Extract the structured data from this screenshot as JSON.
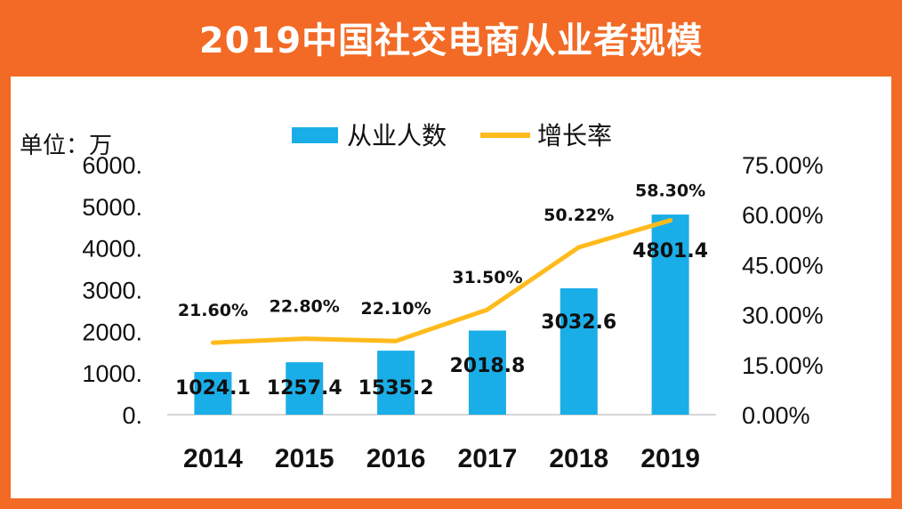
{
  "title": "2019中国社交电商从业者规模",
  "unit_label": "单位：万",
  "colors": {
    "frame": "#f26a25",
    "bar": "#1aaee8",
    "line": "#ffbb1c"
  },
  "chart_data": {
    "type": "bar",
    "categories": [
      "2014",
      "2015",
      "2016",
      "2017",
      "2018",
      "2019"
    ],
    "series": [
      {
        "name": "从业人数",
        "type": "bar",
        "axis": "left",
        "values": [
          1024.1,
          1257.4,
          1535.2,
          2018.8,
          3032.6,
          4801.4
        ],
        "labels": [
          "1024.1",
          "1257.4",
          "1535.2",
          "2018.8",
          "3032.6",
          "4801.4"
        ]
      },
      {
        "name": "增长率",
        "type": "line",
        "axis": "right",
        "values": [
          21.6,
          22.8,
          22.1,
          31.5,
          50.22,
          58.3
        ],
        "labels": [
          "21.60%",
          "22.80%",
          "22.10%",
          "31.50%",
          "50.22%",
          "58.30%"
        ]
      }
    ],
    "y_left": {
      "ylim": [
        0,
        6000
      ],
      "ticks": [
        "0.",
        "1000.",
        "2000.",
        "3000.",
        "4000.",
        "5000.",
        "6000."
      ]
    },
    "y_right": {
      "ylim": [
        0,
        75
      ],
      "ticks": [
        "0.00%",
        "15.00%",
        "30.00%",
        "45.00%",
        "60.00%",
        "75.00%"
      ]
    },
    "legend": "top-center",
    "grid": false
  }
}
